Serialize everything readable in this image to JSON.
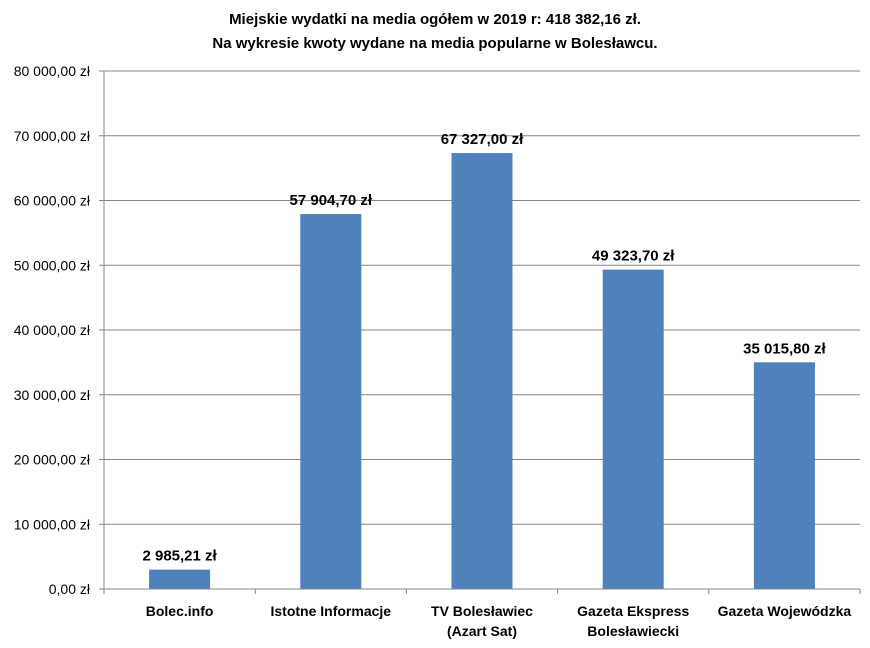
{
  "chart_data": {
    "type": "bar",
    "title": "Miejskie wydatki na media ogółem w 2019 r: 418 382,16 zł.",
    "subtitle": "Na wykresie kwoty wydane na media popularne w Bolesławcu.",
    "xlabel": "",
    "ylabel": "",
    "categories": [
      [
        "Bolec.info"
      ],
      [
        "Istotne Informacje"
      ],
      [
        "TV Bolesławiec",
        "(Azart Sat)"
      ],
      [
        "Gazeta Ekspress",
        "Bolesławiecki"
      ],
      [
        "Gazeta Wojewódzka"
      ]
    ],
    "values": [
      2985.21,
      57904.7,
      67327.0,
      49323.7,
      35015.8
    ],
    "value_labels": [
      "2 985,21 zł",
      "57 904,70 zł",
      "67 327,00 zł",
      "49 323,70 zł",
      "35 015,80 zł"
    ],
    "ylim": [
      0,
      80000
    ],
    "yticks": [
      0,
      10000,
      20000,
      30000,
      40000,
      50000,
      60000,
      70000,
      80000
    ],
    "ytick_labels": [
      "0,00 zł",
      "10 000,00 zł",
      "20 000,00 zł",
      "30 000,00 zł",
      "40 000,00 zł",
      "50 000,00 zł",
      "60 000,00 zł",
      "70 000,00 zł",
      "80 000,00 zł"
    ],
    "grid": true,
    "legend": "none",
    "colors": {
      "bar": "#4F81BD",
      "grid": "#868686",
      "axis": "#868686",
      "text": "#000000"
    }
  }
}
